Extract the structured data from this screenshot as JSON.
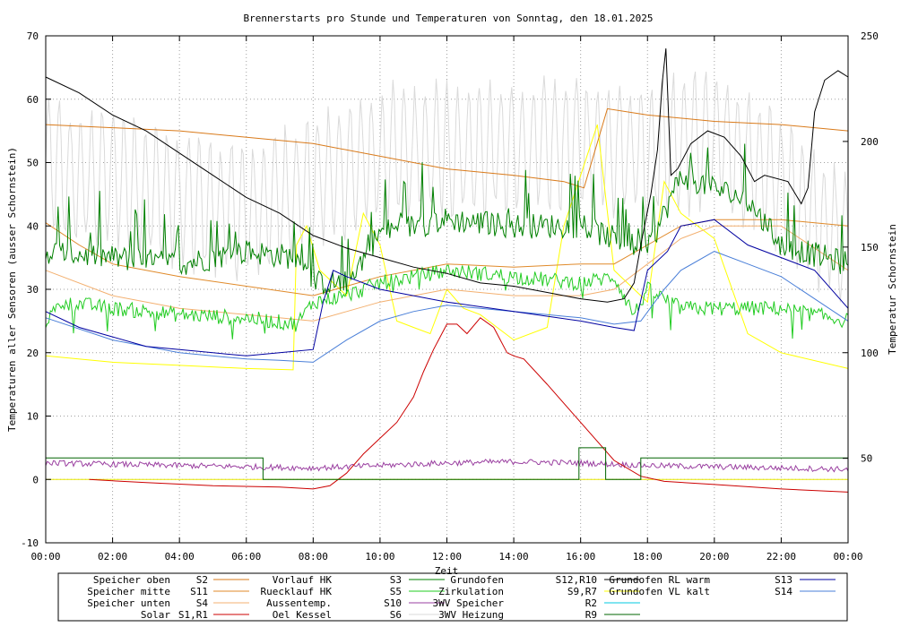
{
  "chart_data": {
    "type": "line",
    "title": "Brennerstarts pro Stunde und Temperaturen von Sonntag, den 18.01.2025",
    "xlabel": "Zeit",
    "ylabel": "Temperaturen aller Sensoren (ausser Schornstein)",
    "y2label": "Temperatur Schornstein",
    "y2label_color": "#e040e0",
    "grid": true,
    "legend_position": "bottom",
    "x_ticks": [
      "00:00",
      "02:00",
      "04:00",
      "06:00",
      "08:00",
      "10:00",
      "12:00",
      "14:00",
      "16:00",
      "18:00",
      "20:00",
      "22:00",
      "00:00"
    ],
    "xlim": [
      0,
      24
    ],
    "ylim": [
      -10,
      70
    ],
    "y_ticks": [
      "-10",
      "0",
      "10",
      "20",
      "30",
      "40",
      "50",
      "60",
      "70"
    ],
    "y2lim": [
      10,
      250
    ],
    "y2_ticks": [
      "50",
      "100",
      "150",
      "200",
      "250"
    ],
    "series": [
      {
        "name": "Speicher oben",
        "sensor": "S2",
        "color": "#d97a1a",
        "points": [
          [
            0,
            56
          ],
          [
            4,
            55
          ],
          [
            8,
            53
          ],
          [
            10,
            51
          ],
          [
            12,
            49
          ],
          [
            14,
            48
          ],
          [
            15.5,
            47
          ],
          [
            16.1,
            46
          ],
          [
            16.8,
            58.5
          ],
          [
            18,
            57.5
          ],
          [
            20,
            56.5
          ],
          [
            22,
            56
          ],
          [
            24,
            55
          ]
        ]
      },
      {
        "name": "Speicher mitte",
        "sensor": "S11",
        "color": "#e08a2a",
        "points": [
          [
            0,
            40.5
          ],
          [
            1,
            37
          ],
          [
            2,
            34
          ],
          [
            4,
            32
          ],
          [
            6,
            30.5
          ],
          [
            8,
            29
          ],
          [
            9,
            30.5
          ],
          [
            10,
            32
          ],
          [
            12,
            34
          ],
          [
            14,
            33.5
          ],
          [
            16,
            34
          ],
          [
            17,
            34
          ],
          [
            18,
            37
          ],
          [
            19,
            40
          ],
          [
            20,
            41
          ],
          [
            22,
            41
          ],
          [
            24,
            40
          ]
        ]
      },
      {
        "name": "Speicher unten",
        "sensor": "S4",
        "color": "#f3b070",
        "points": [
          [
            0,
            33
          ],
          [
            2,
            29
          ],
          [
            4,
            27
          ],
          [
            6,
            26
          ],
          [
            8,
            25
          ],
          [
            9,
            26.5
          ],
          [
            10,
            28
          ],
          [
            12,
            30
          ],
          [
            14,
            29
          ],
          [
            16,
            29
          ],
          [
            17,
            30
          ],
          [
            18,
            34
          ],
          [
            19,
            38
          ],
          [
            20,
            40
          ],
          [
            22,
            40
          ],
          [
            24,
            33
          ]
        ]
      },
      {
        "name": "Solar",
        "sensor": "S1,R1",
        "color": "#cc0000",
        "points": [
          [
            1.3,
            0
          ],
          [
            3,
            -0.5
          ],
          [
            5,
            -1
          ],
          [
            7,
            -1.2
          ],
          [
            8,
            -1.5
          ],
          [
            8.5,
            -1
          ],
          [
            9,
            1
          ],
          [
            9.5,
            4
          ],
          [
            10,
            6.5
          ],
          [
            10.5,
            9
          ],
          [
            11,
            13
          ],
          [
            11.3,
            17
          ],
          [
            11.6,
            20.5
          ],
          [
            12,
            24.5
          ],
          [
            12.3,
            24.5
          ],
          [
            12.6,
            23
          ],
          [
            13,
            25.5
          ],
          [
            13.4,
            24
          ],
          [
            13.8,
            20
          ],
          [
            14,
            19.5
          ],
          [
            14.3,
            19
          ],
          [
            15,
            15
          ],
          [
            16,
            9
          ],
          [
            17,
            3
          ],
          [
            17.8,
            0.5
          ],
          [
            18.5,
            -0.3
          ],
          [
            20,
            -0.8
          ],
          [
            22,
            -1.5
          ],
          [
            24,
            -2
          ]
        ]
      },
      {
        "name": "Vorlauf HK",
        "sensor": "S3",
        "color": "#008000",
        "jitter": "spiky",
        "points": [
          [
            0,
            36
          ],
          [
            2,
            35
          ],
          [
            4,
            34
          ],
          [
            6,
            36
          ],
          [
            7.5,
            35
          ],
          [
            8,
            31
          ],
          [
            9,
            31
          ],
          [
            10,
            39
          ],
          [
            12,
            41
          ],
          [
            14,
            40
          ],
          [
            16,
            40
          ],
          [
            17,
            38
          ],
          [
            18,
            36
          ],
          [
            19,
            48
          ],
          [
            20,
            46
          ],
          [
            21,
            44
          ],
          [
            22,
            37
          ],
          [
            24,
            34
          ]
        ]
      },
      {
        "name": "Ruecklauf HK",
        "sensor": "S5",
        "color": "#22cc22",
        "jitter": "small",
        "points": [
          [
            0,
            25
          ],
          [
            0.5,
            28
          ],
          [
            2,
            27
          ],
          [
            4,
            26
          ],
          [
            6,
            25.5
          ],
          [
            7.5,
            24.5
          ],
          [
            8,
            28
          ],
          [
            9,
            29
          ],
          [
            10,
            31
          ],
          [
            12,
            33
          ],
          [
            14,
            32
          ],
          [
            16,
            31
          ],
          [
            17,
            32
          ],
          [
            17.6,
            26
          ],
          [
            18,
            30
          ],
          [
            19,
            27
          ],
          [
            21,
            27
          ],
          [
            22,
            27
          ],
          [
            24,
            25
          ]
        ]
      },
      {
        "name": "Aussentemp.",
        "sensor": "S10",
        "color": "#9a3fa0",
        "jitter": "tiny",
        "points": [
          [
            0,
            2.6
          ],
          [
            4,
            2.2
          ],
          [
            8,
            1.8
          ],
          [
            10,
            2.2
          ],
          [
            12,
            2.6
          ],
          [
            14,
            2.8
          ],
          [
            16,
            2.6
          ],
          [
            18,
            2.2
          ],
          [
            20,
            2.0
          ],
          [
            22,
            1.8
          ],
          [
            24,
            1.6
          ]
        ]
      },
      {
        "name": "Oel Kessel",
        "sensor": "S6",
        "color": "#dadada",
        "jitter": "osc",
        "points": [
          [
            0,
            58
          ],
          [
            1,
            55
          ],
          [
            2,
            56
          ],
          [
            4,
            52
          ],
          [
            6,
            50
          ],
          [
            8,
            55
          ],
          [
            10,
            59
          ],
          [
            12,
            60
          ],
          [
            14,
            60
          ],
          [
            16,
            61
          ],
          [
            18,
            60
          ],
          [
            20,
            62
          ],
          [
            22,
            55
          ],
          [
            24,
            45
          ]
        ]
      },
      {
        "name": "Grundofen",
        "sensor": "S12,R10",
        "color": "#000000",
        "points": [
          [
            0,
            63.5
          ],
          [
            1,
            61
          ],
          [
            2,
            57.5
          ],
          [
            3,
            55
          ],
          [
            4,
            51.5
          ],
          [
            5,
            48
          ],
          [
            6,
            44.5
          ],
          [
            7,
            42
          ],
          [
            8,
            38.5
          ],
          [
            9,
            36.5
          ],
          [
            10,
            35
          ],
          [
            11,
            33.5
          ],
          [
            12,
            32.5
          ],
          [
            13,
            31
          ],
          [
            14,
            30.5
          ],
          [
            15,
            29.5
          ],
          [
            16,
            28.5
          ],
          [
            16.8,
            28
          ],
          [
            17.3,
            28.5
          ],
          [
            17.6,
            31
          ],
          [
            17.8,
            37
          ],
          [
            18.1,
            45
          ],
          [
            18.3,
            52
          ],
          [
            18.45,
            63
          ],
          [
            18.55,
            68
          ],
          [
            18.7,
            48
          ],
          [
            18.9,
            49
          ],
          [
            19.3,
            53
          ],
          [
            19.8,
            55
          ],
          [
            20.3,
            54
          ],
          [
            20.8,
            51
          ],
          [
            21.2,
            47
          ],
          [
            21.5,
            48
          ],
          [
            22.2,
            47
          ],
          [
            22.6,
            43.5
          ],
          [
            22.8,
            46
          ],
          [
            23,
            58
          ],
          [
            23.3,
            63
          ],
          [
            23.7,
            64.5
          ],
          [
            24,
            63.5
          ]
        ]
      },
      {
        "name": "Zirkulation",
        "sensor": "S9,R7",
        "color": "#ffff00",
        "points": [
          [
            0,
            19.5
          ],
          [
            2,
            18.5
          ],
          [
            4,
            18
          ],
          [
            6,
            17.5
          ],
          [
            7.4,
            17.3
          ],
          [
            7.5,
            37
          ],
          [
            7.8,
            40
          ],
          [
            8.2,
            33
          ],
          [
            9,
            29
          ],
          [
            9.5,
            42
          ],
          [
            10,
            37
          ],
          [
            10.5,
            25
          ],
          [
            11,
            24
          ],
          [
            11.5,
            23
          ],
          [
            12,
            30
          ],
          [
            12.5,
            27
          ],
          [
            13,
            26
          ],
          [
            14,
            22
          ],
          [
            15,
            24
          ],
          [
            15.5,
            40
          ],
          [
            16,
            48
          ],
          [
            16.5,
            56
          ],
          [
            17,
            33
          ],
          [
            18,
            28
          ],
          [
            18.5,
            47
          ],
          [
            19,
            42
          ],
          [
            20,
            38
          ],
          [
            21,
            23
          ],
          [
            22,
            20
          ],
          [
            24,
            17.5
          ]
        ]
      },
      {
        "name": "3WV Speicher",
        "sensor": "R2",
        "color": "#00c8e0",
        "points": []
      },
      {
        "name": "3WV Heizung",
        "sensor": "R9",
        "color": "#006400",
        "points": [
          [
            0,
            3.4
          ],
          [
            6.5,
            3.4
          ],
          [
            6.5,
            0
          ],
          [
            15.95,
            0
          ],
          [
            15.95,
            5
          ],
          [
            16.75,
            5
          ],
          [
            16.75,
            0
          ],
          [
            17.8,
            0
          ],
          [
            17.8,
            3.4
          ],
          [
            24,
            3.4
          ]
        ]
      },
      {
        "name": "Grundofen RL warm",
        "sensor": "S13",
        "color": "#0000a0",
        "points": [
          [
            0,
            26.5
          ],
          [
            1,
            24
          ],
          [
            2,
            22.5
          ],
          [
            3,
            21
          ],
          [
            4,
            20.5
          ],
          [
            5,
            20
          ],
          [
            6,
            19.5
          ],
          [
            7,
            20
          ],
          [
            8,
            20.5
          ],
          [
            8.3,
            28
          ],
          [
            8.6,
            33
          ],
          [
            9,
            32
          ],
          [
            10,
            30
          ],
          [
            11,
            29
          ],
          [
            12,
            28
          ],
          [
            14,
            26.5
          ],
          [
            16,
            25
          ],
          [
            17,
            24
          ],
          [
            17.6,
            23.5
          ],
          [
            18,
            33
          ],
          [
            18.6,
            36
          ],
          [
            19,
            40
          ],
          [
            20,
            41
          ],
          [
            21,
            37
          ],
          [
            22,
            35
          ],
          [
            23,
            33
          ],
          [
            24,
            27
          ]
        ]
      },
      {
        "name": "Grundofen VL kalt",
        "sensor": "S14",
        "color": "#4a7fd8",
        "points": [
          [
            0,
            25.5
          ],
          [
            2,
            22
          ],
          [
            4,
            20
          ],
          [
            6,
            19
          ],
          [
            7,
            18.8
          ],
          [
            8,
            18.5
          ],
          [
            9,
            22
          ],
          [
            10,
            25
          ],
          [
            11,
            26.5
          ],
          [
            12,
            27.5
          ],
          [
            13,
            27
          ],
          [
            14,
            26.5
          ],
          [
            15,
            26
          ],
          [
            16,
            25.5
          ],
          [
            17,
            24.5
          ],
          [
            17.8,
            25
          ],
          [
            18.5,
            30
          ],
          [
            19,
            33
          ],
          [
            20,
            36
          ],
          [
            21,
            34
          ],
          [
            22,
            32
          ],
          [
            24,
            25
          ]
        ]
      }
    ]
  }
}
